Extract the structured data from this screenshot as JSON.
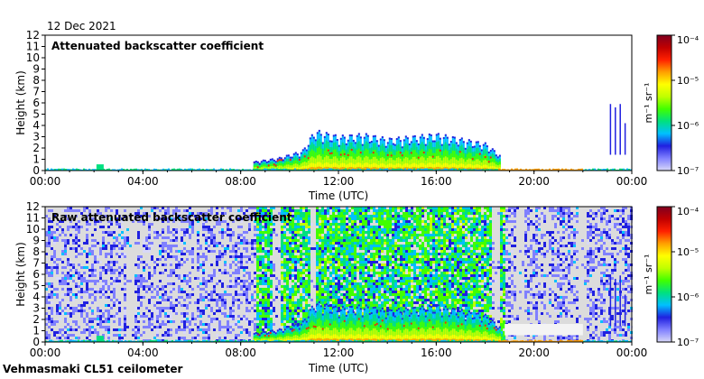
{
  "date": "12 Dec 2021",
  "instrument": "Vehmasmaki CL51 ceilometer",
  "colorbar_unit": "m⁻¹ sr⁻¹",
  "colors": {
    "background_panel": "#ffffff",
    "background_noise": "#dcdcdc",
    "cmap": [
      "#d8d8f8",
      "#8080ff",
      "#2020e0",
      "#00c0ff",
      "#00e080",
      "#40ff00",
      "#c0ff00",
      "#ffff00",
      "#ffa000",
      "#ff2000",
      "#c00000",
      "#800020"
    ]
  },
  "chart_data": [
    {
      "type": "heatmap",
      "title": "Attenuated backscatter coefficient",
      "xlabel": "Time (UTC)",
      "ylabel": "Height (km)",
      "xlim": [
        "00:00",
        "24:00"
      ],
      "x_ticks": [
        "00:00",
        "04:00",
        "08:00",
        "12:00",
        "16:00",
        "20:00",
        "00:00"
      ],
      "ylim": [
        0,
        12
      ],
      "y_ticks": [
        "0",
        "1",
        "2",
        "3",
        "4",
        "5",
        "6",
        "7",
        "8",
        "9",
        "10",
        "11",
        "12"
      ],
      "colorbar": {
        "scale": "log",
        "range": [
          1e-07,
          0.0001
        ],
        "ticks": [
          "10⁻⁷",
          "10⁻⁶",
          "10⁻⁵",
          "10⁻⁴"
        ]
      },
      "cloud_top_km": [
        {
          "hour": 8.5,
          "top": 0.7
        },
        {
          "hour": 9.5,
          "top": 1.0
        },
        {
          "hour": 10.5,
          "top": 1.6
        },
        {
          "hour": 11.0,
          "top": 3.3
        },
        {
          "hour": 12.0,
          "top": 2.8
        },
        {
          "hour": 13.0,
          "top": 3.0
        },
        {
          "hour": 14.0,
          "top": 2.6
        },
        {
          "hour": 15.0,
          "top": 2.8
        },
        {
          "hour": 16.0,
          "top": 3.0
        },
        {
          "hour": 17.0,
          "top": 2.6
        },
        {
          "hour": 18.0,
          "top": 2.2
        },
        {
          "hour": 18.6,
          "top": 1.2
        }
      ]
    },
    {
      "type": "heatmap",
      "title": "Raw attenuated backscatter coefficient",
      "xlabel": "Time (UTC)",
      "ylabel": "Height (km)",
      "xlim": [
        "00:00",
        "24:00"
      ],
      "x_ticks": [
        "00:00",
        "04:00",
        "08:00",
        "12:00",
        "16:00",
        "20:00",
        "00:00"
      ],
      "ylim": [
        0,
        12
      ],
      "y_ticks": [
        "0",
        "1",
        "2",
        "3",
        "4",
        "5",
        "6",
        "7",
        "8",
        "9",
        "10",
        "11",
        "12"
      ],
      "colorbar": {
        "scale": "log",
        "range": [
          1e-07,
          0.0001
        ],
        "ticks": [
          "10⁻⁷",
          "10⁻⁶",
          "10⁻⁵",
          "10⁻⁴"
        ]
      }
    }
  ]
}
